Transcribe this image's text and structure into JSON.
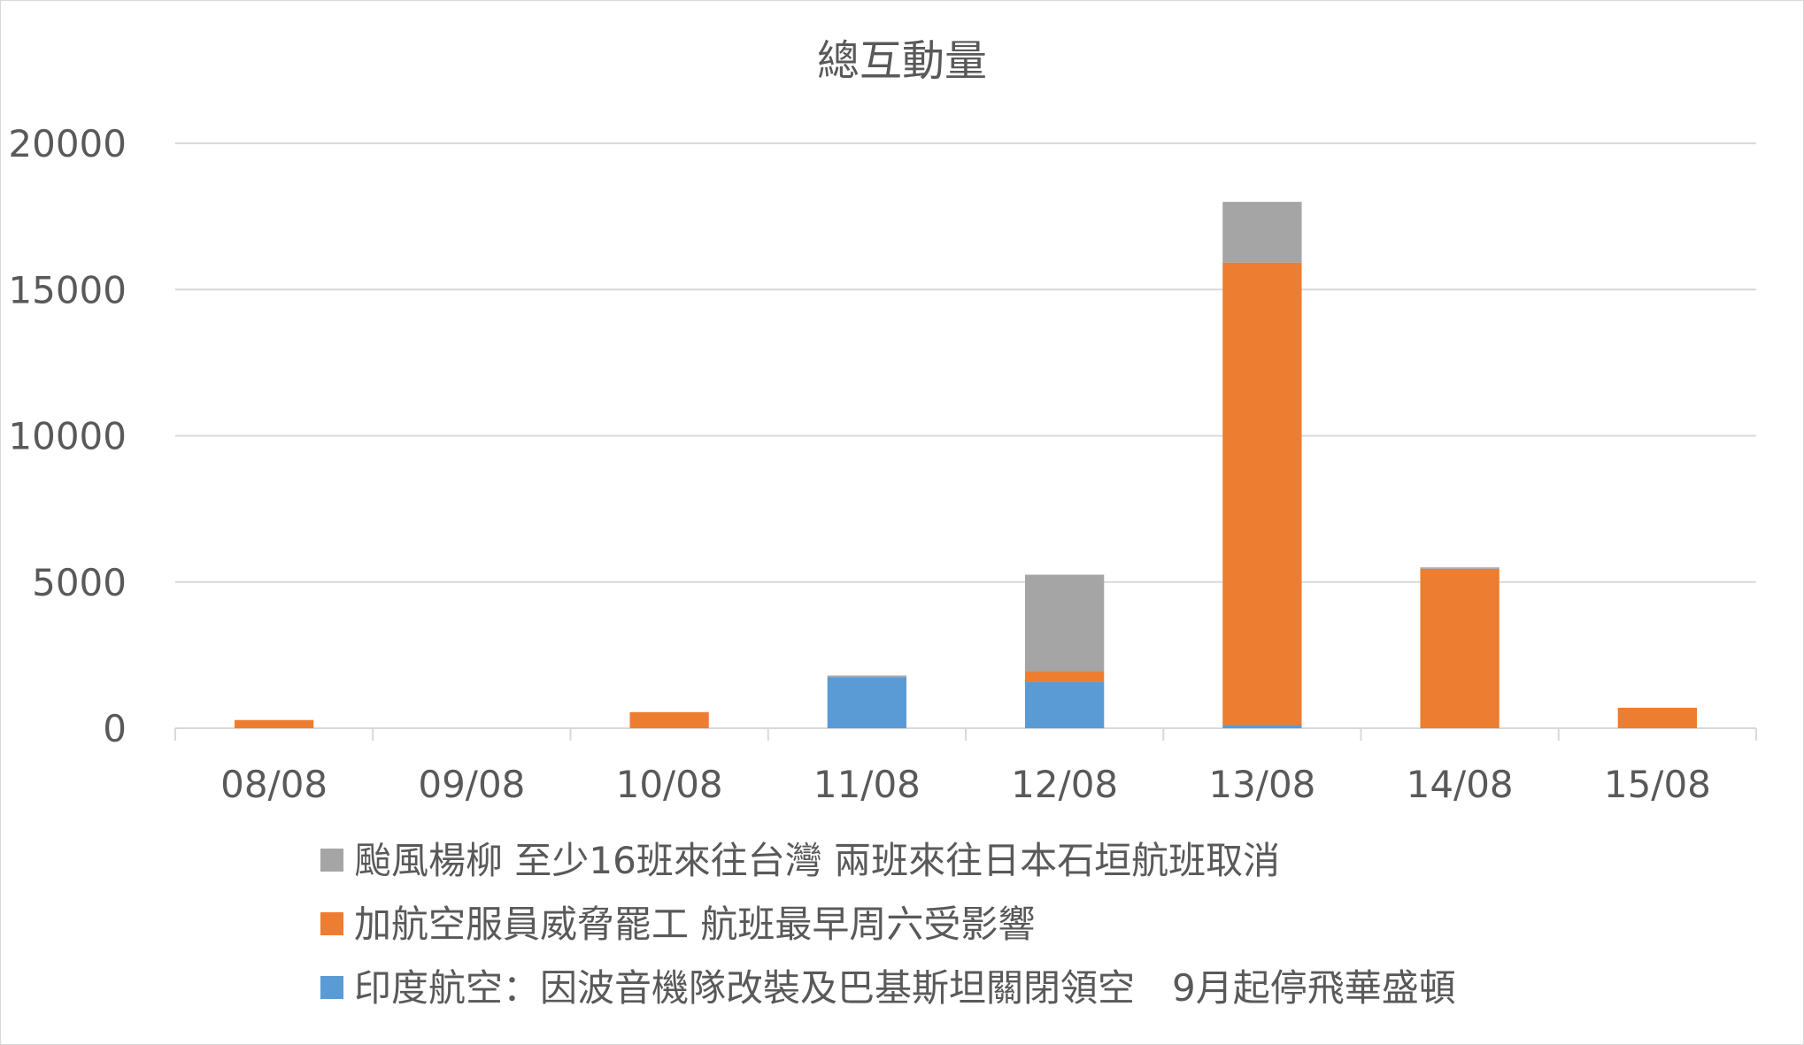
{
  "chart_data": {
    "type": "bar",
    "stacked": true,
    "title": "總互動量",
    "xlabel": "",
    "ylabel": "",
    "ylim": [
      0,
      20000
    ],
    "yticks": [
      0,
      5000,
      10000,
      15000,
      20000
    ],
    "grid": true,
    "legend_position": "bottom",
    "categories": [
      "08/08",
      "09/08",
      "10/08",
      "11/08",
      "12/08",
      "13/08",
      "14/08",
      "15/08"
    ],
    "series": [
      {
        "name": "印度航空：因波音機隊改裝及巴基斯坦關閉領空　9月起停飛華盛頓",
        "color": "#5b9bd5",
        "values": [
          0,
          0,
          0,
          1750,
          1600,
          120,
          0,
          0
        ]
      },
      {
        "name": "加航空服員威脅罷工 航班最早周六受影響",
        "color": "#ed7d31",
        "values": [
          280,
          0,
          550,
          0,
          350,
          15800,
          5450,
          700
        ]
      },
      {
        "name": "颱風楊柳 至少16班來往台灣 兩班來往日本石垣航班取消",
        "color": "#a5a5a5",
        "values": [
          0,
          0,
          0,
          50,
          3300,
          2080,
          50,
          0
        ]
      }
    ]
  }
}
